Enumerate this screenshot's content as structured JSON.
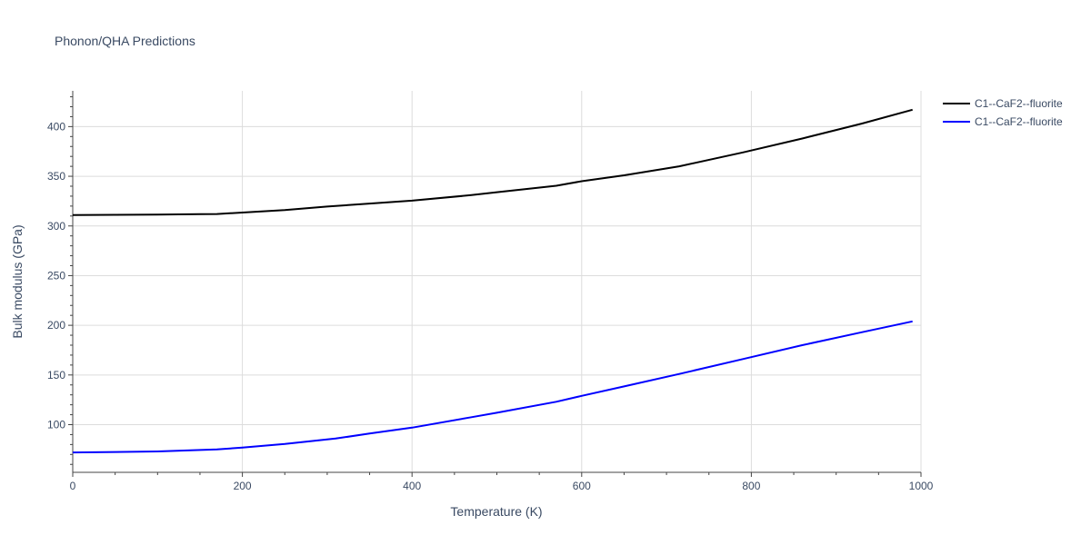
{
  "chart_data": {
    "type": "line",
    "title": "Phonon/QHA Predictions",
    "xlabel": "Temperature (K)",
    "ylabel": "Bulk modulus (GPa)",
    "xlim": [
      0,
      1000
    ],
    "ylim": [
      52,
      436
    ],
    "x_ticks": [
      0,
      200,
      400,
      600,
      800,
      1000
    ],
    "y_ticks": [
      100,
      150,
      200,
      250,
      300,
      350,
      400
    ],
    "grid": true,
    "legend_position": "top-right",
    "series": [
      {
        "name": "C1--CaF2--fluorite",
        "color": "#000000",
        "x": [
          0,
          50,
          100,
          150,
          170,
          200,
          250,
          300,
          350,
          400,
          470,
          500,
          570,
          600,
          650,
          715,
          790,
          860,
          930,
          990
        ],
        "y": [
          311,
          311.2,
          311.5,
          311.8,
          312,
          313.5,
          316,
          319.5,
          322.5,
          325.5,
          331,
          334,
          340.5,
          345,
          351,
          360,
          374,
          388,
          403,
          417
        ]
      },
      {
        "name": "C1--CaF2--fluorite",
        "color": "#0000ff",
        "x": [
          0,
          50,
          100,
          170,
          200,
          250,
          310,
          350,
          400,
          470,
          500,
          570,
          600,
          650,
          715,
          790,
          860,
          930,
          990
        ],
        "y": [
          72,
          72.5,
          73,
          75,
          77,
          80.5,
          86,
          91,
          97,
          107.5,
          112,
          123,
          129,
          138.5,
          151,
          166,
          180,
          193,
          204
        ]
      }
    ]
  }
}
